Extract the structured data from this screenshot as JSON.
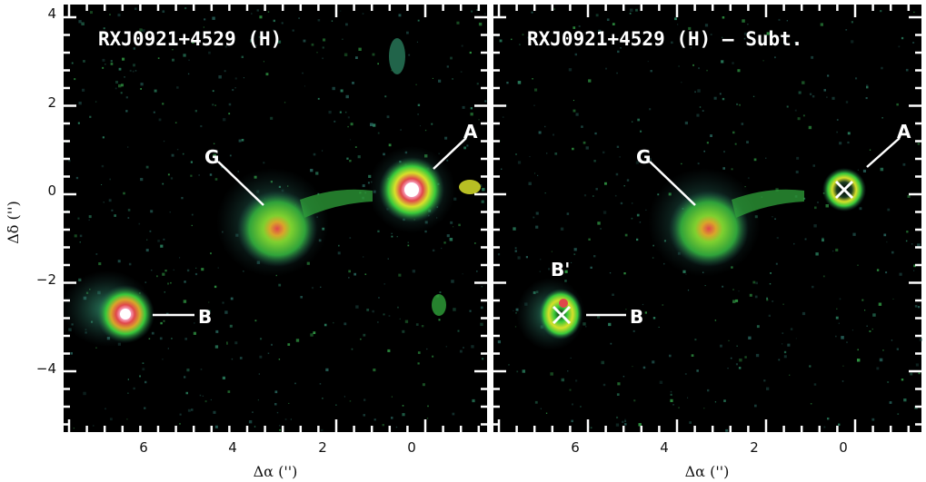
{
  "panels": [
    {
      "title": "RXJ0921+4529 (H)",
      "labels": {
        "A": "A",
        "G": "G",
        "B": "B"
      },
      "marks": "none"
    },
    {
      "title": "RXJ0921+4529 (H) – Subt.",
      "labels": {
        "A": "A",
        "G": "G",
        "B": "B",
        "Bp": "B'"
      },
      "marks": "x-crosses at A and B"
    }
  ],
  "axes": {
    "xlabel": "Δα ('')",
    "ylabel": "Δδ ('')",
    "x_ticks": [
      "6",
      "4",
      "2",
      "0"
    ],
    "y_ticks": [
      "4",
      "2",
      "0",
      "−2",
      "−4"
    ],
    "xlim": [
      7.6,
      -1.6
    ],
    "ylim": [
      -5.4,
      4.0
    ]
  },
  "colors": {
    "background": "#000000",
    "halo": "#2f6f6a",
    "green": "#37c93a",
    "yellow": "#d8e02a",
    "red": "#e0474a",
    "core": "#ffd9f0"
  }
}
